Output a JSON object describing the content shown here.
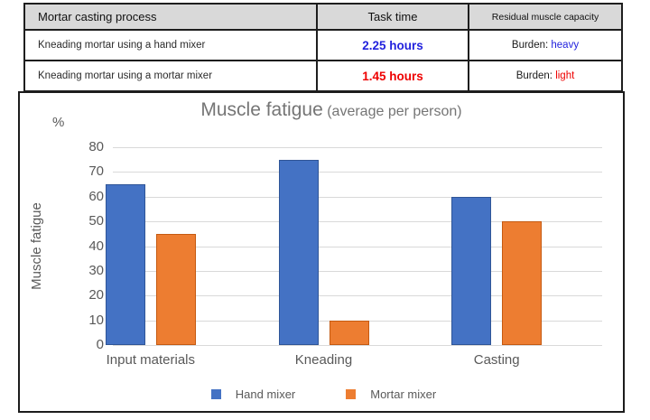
{
  "colors": {
    "accent_blue": "#2222dd",
    "accent_red": "#ee0000",
    "grid": "#d9d9d9"
  },
  "table": {
    "headers": [
      "Mortar casting process",
      "Task time",
      "Residual muscle capacity"
    ],
    "rows": [
      {
        "process": "Kneading mortar using a hand mixer",
        "task_time": "2.25 hours",
        "burden_label": "Burden: ",
        "burden_value": "heavy"
      },
      {
        "process": "Kneading mortar using a mortar mixer",
        "task_time": "1.45 hours",
        "burden_label": "Burden: ",
        "burden_value": "light"
      }
    ]
  },
  "chart_data": {
    "type": "bar",
    "title": "Muscle fatigue",
    "subtitle": "(average per person)",
    "unit_label": "%",
    "ylabel": "Muscle fatigue",
    "categories": [
      "Input materials",
      "Kneading",
      "Casting"
    ],
    "series": [
      {
        "name": "Hand mixer",
        "color": "#4472C4",
        "edge": "#2f5597",
        "values": [
          65,
          75,
          60
        ]
      },
      {
        "name": "Mortar mixer",
        "color": "#ED7D31",
        "edge": "#c55a11",
        "values": [
          45,
          10,
          50
        ]
      }
    ],
    "ylim": [
      0,
      80
    ],
    "ytick_step": 10,
    "grid": true,
    "legend_position": "bottom"
  }
}
